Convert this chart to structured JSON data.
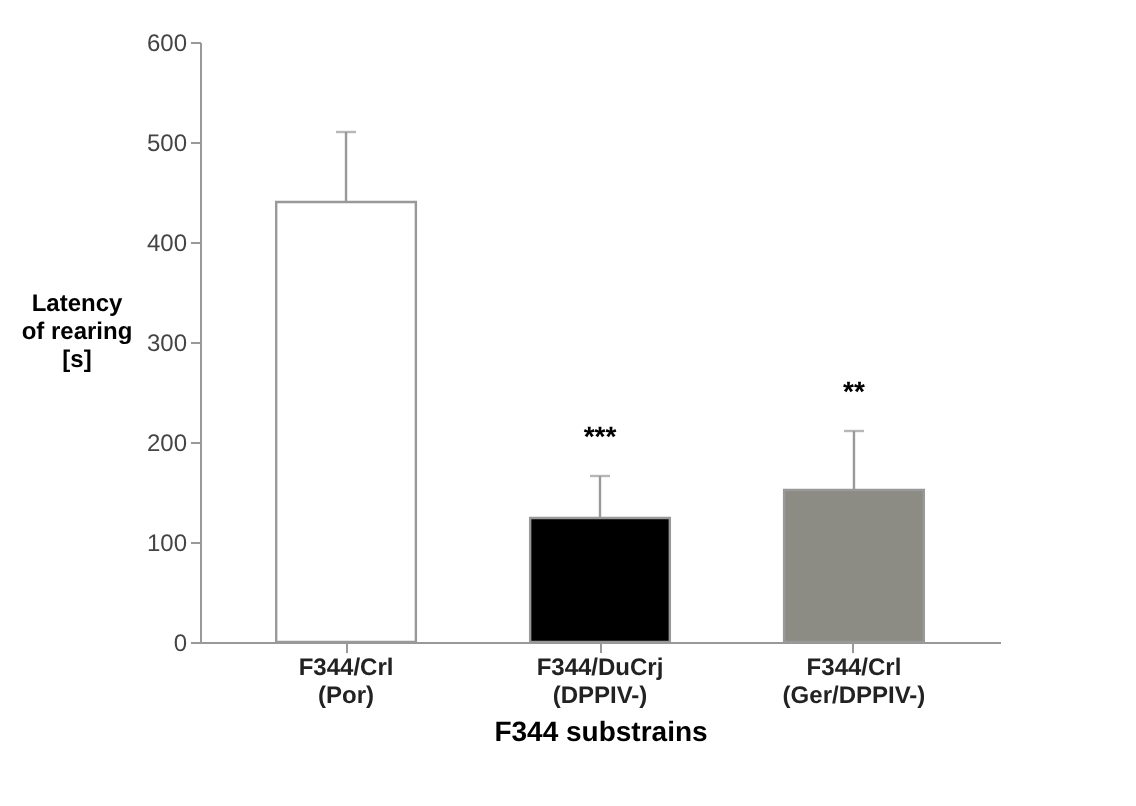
{
  "chart_data": {
    "type": "bar",
    "ylabel": "Latency\nof rearing\n[s]",
    "xlabel": "F344 substrains",
    "categories": [
      "F344/Crl\n(Por)",
      "F344/DuCrj\n(DPPIV-)",
      "F344/Crl\n(Ger/DPPIV-)"
    ],
    "values": [
      440,
      124,
      152
    ],
    "colors": [
      "#ffffff",
      "#000000",
      "#8c8c84"
    ],
    "errors": [
      [
        440,
        510
      ],
      [
        124,
        166
      ],
      [
        152,
        211
      ]
    ],
    "ylim": [
      0,
      600
    ],
    "yticks": [
      0,
      100,
      200,
      300,
      400,
      500,
      600
    ],
    "grid": false,
    "annotations": [
      "***",
      "**"
    ]
  }
}
